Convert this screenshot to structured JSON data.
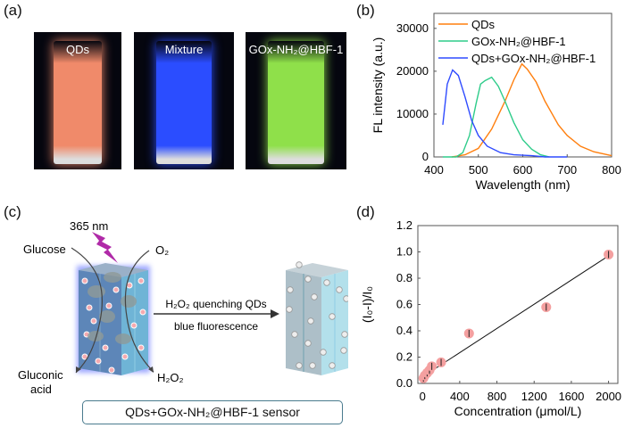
{
  "panel_a": {
    "label": "(a)",
    "photos": [
      {
        "title": "QDs",
        "color": "#f08a6a"
      },
      {
        "title": "Mixture",
        "color": "#2b4dff"
      },
      {
        "title": "GOx-NH₂@HBF-1",
        "color": "#8fe04a"
      }
    ]
  },
  "panel_c": {
    "label": "(c)",
    "excitation": "365 nm",
    "glucose": "Glucose",
    "o2": "O₂",
    "gluconic_acid_1": "Gluconic",
    "gluconic_acid_2": "acid",
    "h2o2": "H₂O₂",
    "arrow_text_1": "H₂O₂ quenching QDs",
    "arrow_text_2": "blue fluorescence",
    "sensor_label": "QDs+GOx-NH₂@HBF-1 sensor"
  },
  "chart_data": [
    {
      "panel": "(b)",
      "type": "line",
      "title": "",
      "xlabel": "Wavelength (nm)",
      "ylabel": "FL intensity (a.u.)",
      "xlim": [
        400,
        800
      ],
      "ylim": [
        0,
        33500
      ],
      "xticks": [
        "400",
        "500",
        "600",
        "700",
        "800"
      ],
      "yticks": [
        "0",
        "10000",
        "20000",
        "30000"
      ],
      "legend_position": "top-right",
      "series": [
        {
          "name": "QDs",
          "color": "#ff7f0e",
          "x": [
            440,
            470,
            500,
            530,
            560,
            580,
            598,
            610,
            630,
            650,
            680,
            700,
            730,
            760,
            800
          ],
          "y": [
            0,
            500,
            2000,
            6500,
            13000,
            18000,
            21700,
            20500,
            17500,
            13000,
            7500,
            5000,
            2500,
            1200,
            300
          ]
        },
        {
          "name": "GOx-NH₂@HBF-1",
          "color": "#2ecc8a",
          "x": [
            420,
            450,
            465,
            480,
            495,
            505,
            515,
            530,
            545,
            560,
            580,
            600,
            620,
            640,
            660
          ],
          "y": [
            0,
            0,
            1000,
            5000,
            12500,
            17000,
            17800,
            18600,
            16500,
            13000,
            8000,
            4000,
            1800,
            500,
            0
          ]
        },
        {
          "name": "QDs+GOx-NH₂@HBF-1",
          "color": "#2f4bff",
          "x": [
            420,
            430,
            442,
            455,
            470,
            485,
            500,
            520,
            550,
            580,
            620,
            650,
            700
          ],
          "y": [
            7500,
            17000,
            20300,
            19000,
            14000,
            8500,
            5000,
            2500,
            1000,
            500,
            300,
            0,
            0
          ]
        }
      ]
    },
    {
      "panel": "(d)",
      "type": "scatter",
      "title": "",
      "xlabel": "Concentration (μmol/L)",
      "ylabel": "(I₀-I)/I₀",
      "xlim": [
        -50,
        2100
      ],
      "ylim": [
        0,
        1.2
      ],
      "xticks": [
        "0",
        "400",
        "800",
        "1200",
        "1600",
        "2000"
      ],
      "yticks": [
        "0.0",
        "0.2",
        "0.4",
        "0.6",
        "0.8",
        "1.0",
        "1.2"
      ],
      "points": {
        "x": [
          10,
          25,
          50,
          75,
          100,
          200,
          500,
          1330,
          2000
        ],
        "y": [
          0.04,
          0.06,
          0.08,
          0.1,
          0.13,
          0.16,
          0.38,
          0.58,
          0.98
        ]
      },
      "fit_line": {
        "x": [
          0,
          2000
        ],
        "y": [
          0.05,
          0.97
        ]
      },
      "marker_color": "#f4a0a0"
    }
  ]
}
